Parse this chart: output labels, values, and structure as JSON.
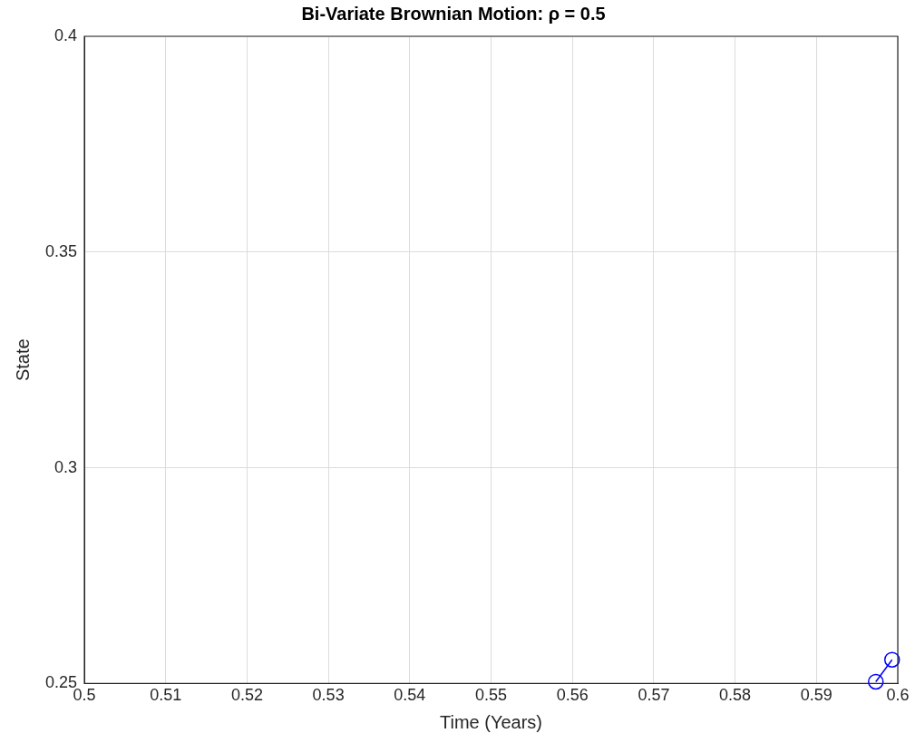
{
  "chart_data": {
    "type": "line",
    "title": "Bi-Variate Brownian Motion: ρ = 0.5",
    "xlabel": "Time (Years)",
    "ylabel": "State",
    "series": [
      {
        "color": "#0000ff",
        "x": [
          0.5973,
          0.5993
        ],
        "values": [
          0.2504,
          0.2555
        ]
      }
    ],
    "xlim": [
      0.5,
      0.6
    ],
    "xticks": [
      0.5,
      0.51,
      0.52,
      0.53,
      0.54,
      0.55,
      0.56,
      0.57,
      0.58,
      0.59,
      0.6
    ],
    "ylim": [
      0.25,
      0.4
    ],
    "yticks": [
      0.25,
      0.3,
      0.35,
      0.4
    ],
    "grid": true,
    "marker": "circle",
    "line_style": "solid"
  }
}
